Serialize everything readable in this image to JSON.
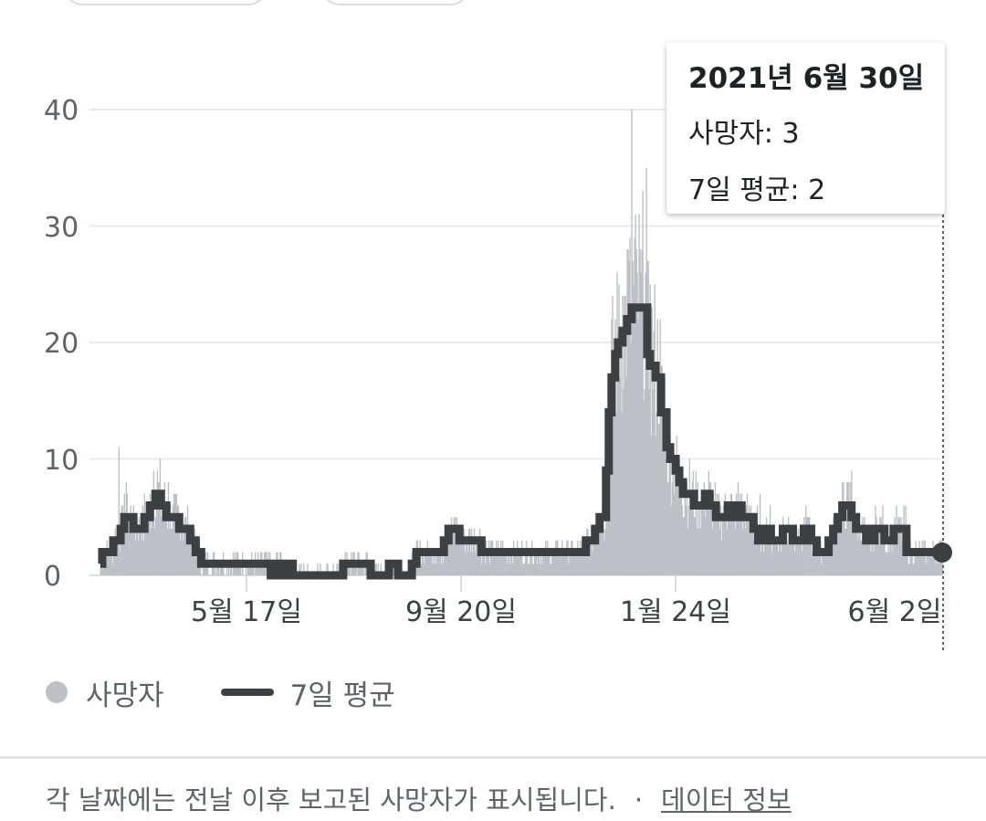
{
  "chart_data": {
    "type": "bar",
    "series": [
      {
        "name": "사망자",
        "kind": "bar",
        "color": "#bdc1c6"
      },
      {
        "name": "7일 평균",
        "kind": "line",
        "color": "#3c4043"
      }
    ],
    "ylim": [
      0,
      40
    ],
    "yticks": [
      "0",
      "10",
      "20",
      "30",
      "40"
    ],
    "xtick_labels": [
      "5월 17일",
      "9월 20일",
      "1월 24일",
      "6월 2일"
    ],
    "avg_points": [
      [
        0,
        1
      ],
      [
        2,
        2
      ],
      [
        10,
        2
      ],
      [
        14,
        3
      ],
      [
        22,
        4
      ],
      [
        26,
        5
      ],
      [
        32,
        5
      ],
      [
        36,
        4
      ],
      [
        42,
        4
      ],
      [
        48,
        5
      ],
      [
        54,
        6
      ],
      [
        60,
        7
      ],
      [
        66,
        6
      ],
      [
        72,
        5
      ],
      [
        80,
        5
      ],
      [
        86,
        4
      ],
      [
        92,
        4
      ],
      [
        98,
        3
      ],
      [
        104,
        2
      ],
      [
        110,
        1
      ],
      [
        180,
        1
      ],
      [
        186,
        0
      ],
      [
        192,
        1
      ],
      [
        200,
        0
      ],
      [
        205,
        1
      ],
      [
        210,
        0
      ],
      [
        260,
        0
      ],
      [
        265,
        1
      ],
      [
        290,
        1
      ],
      [
        295,
        0
      ],
      [
        310,
        0
      ],
      [
        315,
        1
      ],
      [
        325,
        0
      ],
      [
        335,
        0
      ],
      [
        340,
        1
      ],
      [
        345,
        2
      ],
      [
        370,
        2
      ],
      [
        375,
        3
      ],
      [
        380,
        4
      ],
      [
        392,
        3
      ],
      [
        410,
        3
      ],
      [
        416,
        2
      ],
      [
        450,
        2
      ],
      [
        500,
        2
      ],
      [
        525,
        2
      ],
      [
        530,
        3
      ],
      [
        540,
        4
      ],
      [
        545,
        5
      ],
      [
        552,
        9
      ],
      [
        555,
        14
      ],
      [
        558,
        17
      ],
      [
        562,
        19
      ],
      [
        565,
        20
      ],
      [
        570,
        21
      ],
      [
        575,
        22
      ],
      [
        580,
        23
      ],
      [
        590,
        23
      ],
      [
        597,
        19
      ],
      [
        600,
        18
      ],
      [
        606,
        17
      ],
      [
        612,
        14
      ],
      [
        618,
        11
      ],
      [
        622,
        10
      ],
      [
        628,
        9
      ],
      [
        632,
        8
      ],
      [
        636,
        7
      ],
      [
        642,
        7
      ],
      [
        648,
        6
      ],
      [
        655,
        6
      ],
      [
        660,
        7
      ],
      [
        665,
        6
      ],
      [
        672,
        5
      ],
      [
        680,
        5
      ],
      [
        685,
        6
      ],
      [
        690,
        5
      ],
      [
        695,
        6
      ],
      [
        700,
        5
      ],
      [
        708,
        5
      ],
      [
        713,
        4
      ],
      [
        718,
        3
      ],
      [
        725,
        4
      ],
      [
        732,
        3
      ],
      [
        740,
        3
      ],
      [
        745,
        4
      ],
      [
        752,
        4
      ],
      [
        756,
        3
      ],
      [
        762,
        3
      ],
      [
        768,
        4
      ],
      [
        776,
        3
      ],
      [
        782,
        2
      ],
      [
        790,
        2
      ],
      [
        795,
        3
      ],
      [
        800,
        4
      ],
      [
        805,
        5
      ],
      [
        810,
        6
      ],
      [
        816,
        6
      ],
      [
        820,
        5
      ],
      [
        825,
        4
      ],
      [
        832,
        4
      ],
      [
        836,
        3
      ],
      [
        845,
        4
      ],
      [
        850,
        4
      ],
      [
        856,
        3
      ],
      [
        862,
        3
      ],
      [
        866,
        4
      ],
      [
        872,
        4
      ],
      [
        880,
        2
      ],
      [
        900,
        2
      ],
      [
        919,
        2
      ]
    ],
    "tooltip": {
      "date": "2021년 6월 30일",
      "deaths_label": "사망자: 3",
      "avg_label": "7일 평균: 2"
    }
  },
  "legend": {
    "deaths": "사망자",
    "avg": "7일 평균"
  },
  "footer": {
    "note": "각 날짜에는 전날 이후 보고된 사망자가 표시됩니다.",
    "separator": "·",
    "link": "데이터 정보"
  }
}
